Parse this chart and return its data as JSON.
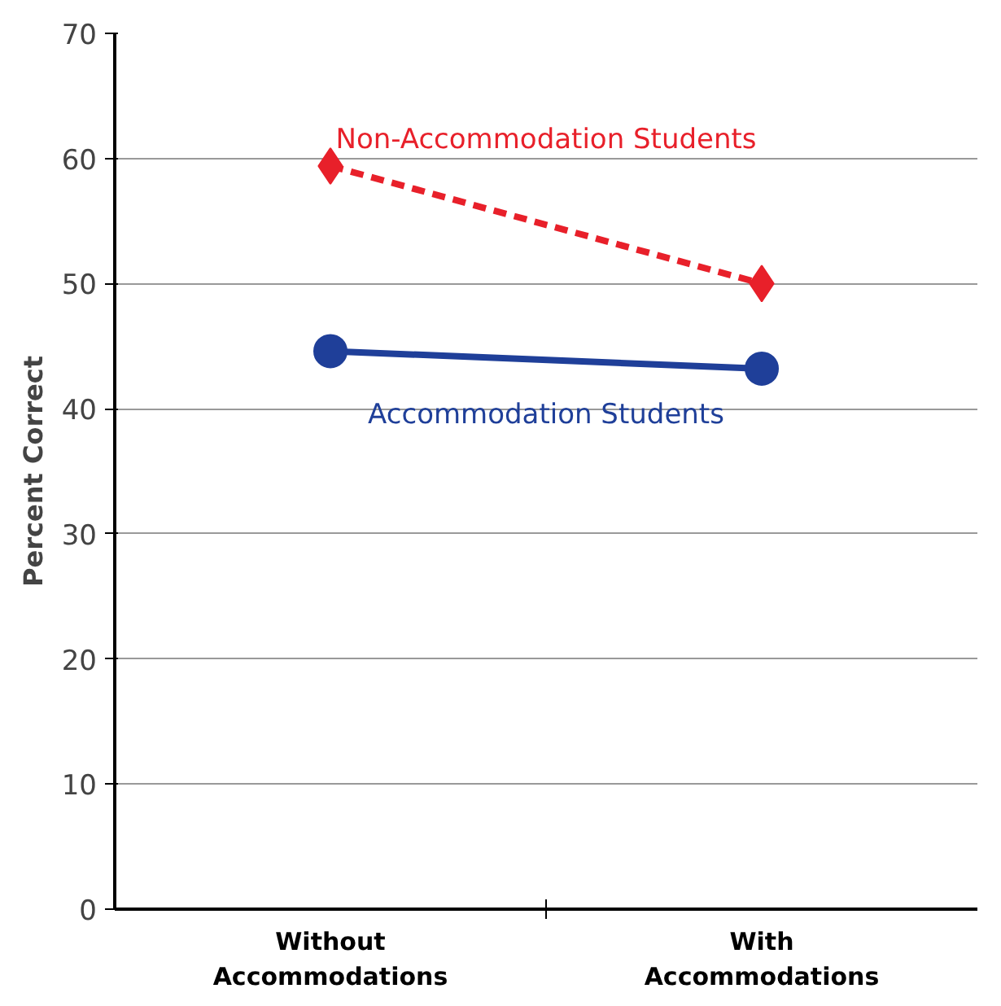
{
  "chart_data": {
    "type": "line",
    "ylabel": "Percent Correct",
    "categories": [
      "Without Accommodations",
      "With Accommodations"
    ],
    "series": [
      {
        "name": "Non-Accommodation Students",
        "color": "#e8202a",
        "values": [
          59.4,
          50.0
        ],
        "marker": "diamond",
        "line_style": "dashed"
      },
      {
        "name": "Accommodation Students",
        "color": "#1f3f99",
        "values": [
          44.6,
          43.2
        ],
        "marker": "circle",
        "line_style": "solid"
      }
    ],
    "ylim": [
      0,
      70
    ],
    "yticks": [
      0,
      10,
      20,
      30,
      40,
      50,
      60,
      70
    ],
    "grid": "y"
  }
}
